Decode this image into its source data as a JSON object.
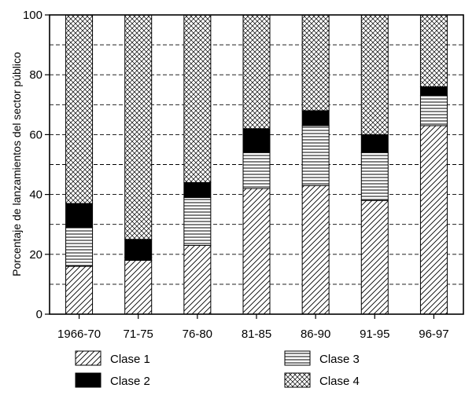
{
  "chart_data": {
    "type": "bar",
    "stacked": true,
    "title": "",
    "xlabel": "",
    "ylabel": "Porcentaje de lanzamientos del sector público",
    "ylim": [
      0,
      100
    ],
    "y_ticks": [
      "0",
      "20",
      "40",
      "60",
      "80",
      "100"
    ],
    "gridlines_every": 10,
    "categories": [
      "1966-70",
      "71-75",
      "76-80",
      "81-85",
      "86-90",
      "91-95",
      "96-97"
    ],
    "series": [
      {
        "name": "Clase 1",
        "pattern": "diagonal-hatch",
        "values": [
          16,
          18,
          23,
          42,
          43,
          38,
          63
        ]
      },
      {
        "name": "Clase 2",
        "pattern": "solid-black",
        "values": [
          0,
          1,
          0,
          0,
          0,
          0,
          0
        ]
      },
      {
        "name": "Clase 3",
        "pattern": "horizontal-lines",
        "values": [
          13,
          0,
          16,
          12,
          20,
          16,
          10
        ]
      },
      {
        "name": "Clase 2",
        "pattern": "solid-black",
        "values": [
          8,
          6,
          5,
          8,
          5,
          6,
          3
        ]
      },
      {
        "name": "Clase 4",
        "pattern": "crosshatch",
        "values": [
          63,
          75,
          56,
          38,
          32,
          40,
          24
        ]
      }
    ],
    "legend": {
      "placement": "bottom",
      "items": [
        {
          "label": "Clase 1",
          "pattern": "diagonal-hatch"
        },
        {
          "label": "Clase 2",
          "pattern": "solid-black"
        },
        {
          "label": "Clase 3",
          "pattern": "horizontal-lines"
        },
        {
          "label": "Clase 4",
          "pattern": "crosshatch"
        }
      ]
    },
    "colors": {
      "ink": "#000000",
      "background": "#ffffff"
    }
  }
}
